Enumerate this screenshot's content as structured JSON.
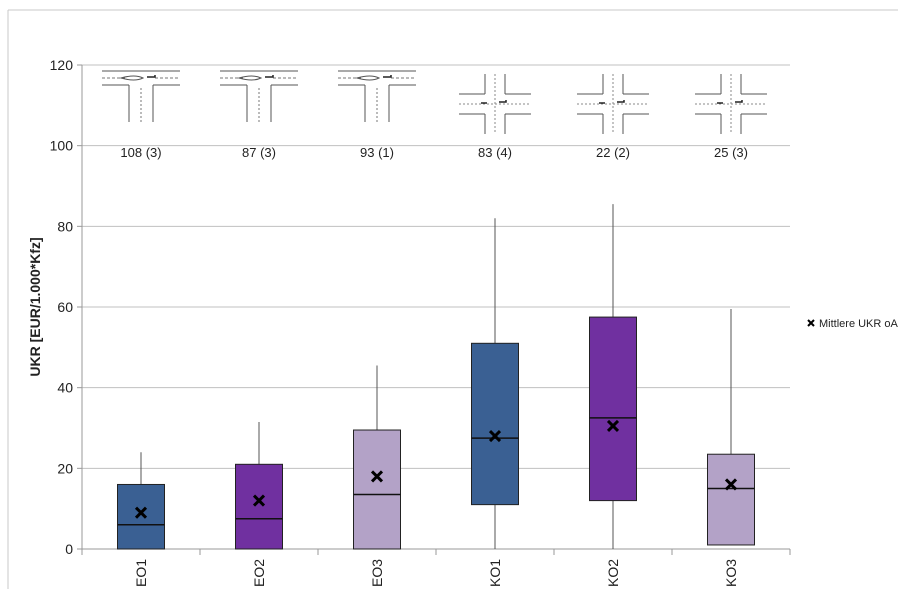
{
  "chart_data": {
    "type": "box",
    "ylabel": "UKR [EUR/1.000*Kfz]",
    "ylim": [
      0,
      120
    ],
    "yticks": [
      0,
      20,
      40,
      60,
      80,
      100,
      120
    ],
    "grid": true,
    "legend": {
      "label": "Mittlere UKR oA",
      "position": "right"
    },
    "categories": [
      "EO1",
      "EO2",
      "EO3",
      "KO1",
      "KO2",
      "KO3"
    ],
    "counts": [
      "108 (3)",
      "87 (3)",
      "93 (1)",
      "83 (4)",
      "22 (2)",
      "25 (3)"
    ],
    "junction_icons": [
      "t-junction-icon",
      "t-junction-icon",
      "t-junction-icon",
      "crossroads-icon",
      "crossroads-icon",
      "crossroads-icon"
    ],
    "boxes": [
      {
        "category": "EO1",
        "min": 0,
        "q1": 0,
        "median": 6,
        "q3": 16,
        "max": 24,
        "mean": 9,
        "color": "#3a6093"
      },
      {
        "category": "EO2",
        "min": 0,
        "q1": 0,
        "median": 7.5,
        "q3": 21,
        "max": 31.5,
        "mean": 12,
        "color": "#7030a0"
      },
      {
        "category": "EO3",
        "min": 0,
        "q1": 0,
        "median": 13.5,
        "q3": 29.5,
        "max": 45.5,
        "mean": 18,
        "color": "#b3a2c7"
      },
      {
        "category": "KO1",
        "min": 0,
        "q1": 11,
        "median": 27.5,
        "q3": 51,
        "max": 82,
        "mean": 28,
        "color": "#3a6093"
      },
      {
        "category": "KO2",
        "min": 0,
        "q1": 12,
        "median": 32.5,
        "q3": 57.5,
        "max": 85.5,
        "mean": 30.5,
        "color": "#7030a0"
      },
      {
        "category": "KO3",
        "min": 1,
        "q1": 1,
        "median": 15,
        "q3": 23.5,
        "max": 59.5,
        "mean": 16,
        "color": "#b3a2c7"
      }
    ]
  }
}
